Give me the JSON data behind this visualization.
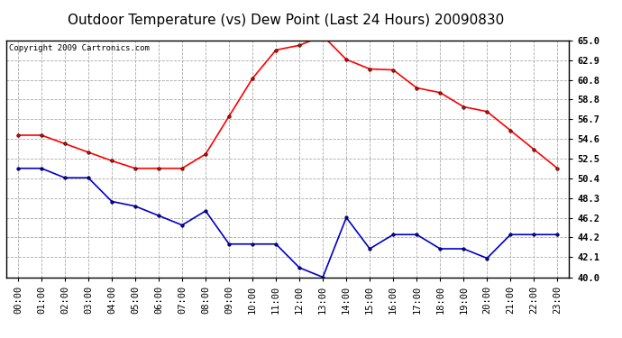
{
  "title": "Outdoor Temperature (vs) Dew Point (Last 24 Hours) 20090830",
  "copyright_text": "Copyright 2009 Cartronics.com",
  "x_labels": [
    "00:00",
    "01:00",
    "02:00",
    "03:00",
    "04:00",
    "05:00",
    "06:00",
    "07:00",
    "08:00",
    "09:00",
    "10:00",
    "11:00",
    "12:00",
    "13:00",
    "14:00",
    "15:00",
    "16:00",
    "17:00",
    "18:00",
    "19:00",
    "20:00",
    "21:00",
    "22:00",
    "23:00"
  ],
  "temp_data": [
    55.0,
    55.0,
    54.1,
    53.2,
    52.3,
    51.5,
    51.5,
    51.5,
    53.0,
    57.0,
    61.0,
    64.0,
    64.5,
    65.5,
    63.0,
    62.0,
    61.9,
    60.0,
    59.5,
    58.0,
    57.5,
    55.5,
    53.5,
    51.5
  ],
  "dew_data": [
    51.5,
    51.5,
    50.5,
    50.5,
    48.0,
    47.5,
    46.5,
    45.5,
    47.0,
    43.5,
    43.5,
    43.5,
    41.0,
    40.0,
    46.3,
    43.0,
    44.5,
    44.5,
    43.0,
    43.0,
    42.0,
    44.5,
    44.5,
    44.5
  ],
  "temp_color": "#ff0000",
  "dew_color": "#0000cc",
  "marker_color": "#000000",
  "bg_color": "#ffffff",
  "plot_bg_color": "#ffffff",
  "grid_color": "#aaaaaa",
  "ylim": [
    40.0,
    65.0
  ],
  "yticks": [
    40.0,
    42.1,
    44.2,
    46.2,
    48.3,
    50.4,
    52.5,
    54.6,
    56.7,
    58.8,
    60.8,
    62.9,
    65.0
  ],
  "title_fontsize": 11,
  "tick_fontsize": 7.5,
  "copyright_fontsize": 6.5
}
